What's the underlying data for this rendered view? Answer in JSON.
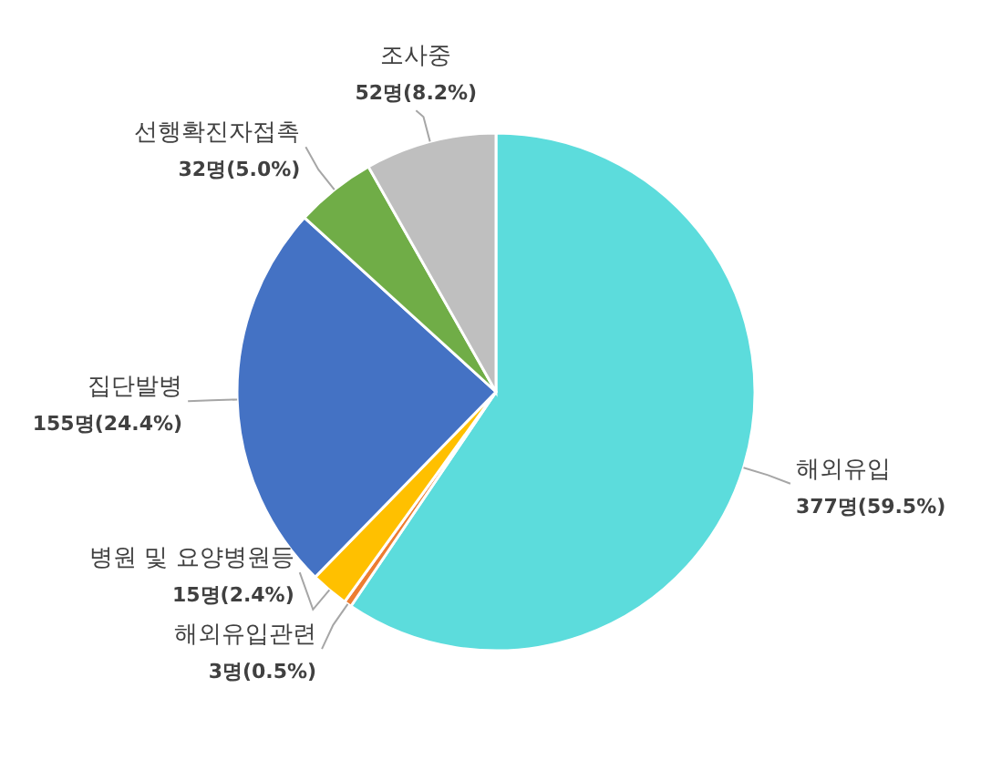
{
  "chart_data": {
    "type": "pie",
    "categories": [
      "해외유입",
      "해외유입관련",
      "병원 및 요양병원등",
      "집단발병",
      "선행확진자접촉",
      "조사중"
    ],
    "values": [
      377,
      3,
      15,
      155,
      32,
      52
    ],
    "value_labels": [
      "377명(59.5%)",
      "3명(0.5%)",
      "15명(2.4%)",
      "155명(24.4%)",
      "32명(5.0%)",
      "52명(8.2%)"
    ],
    "colors": [
      "#5cdcdc",
      "#ed7d31",
      "#ffc000",
      "#4472c4",
      "#70ad47",
      "#bfbfbf"
    ]
  }
}
